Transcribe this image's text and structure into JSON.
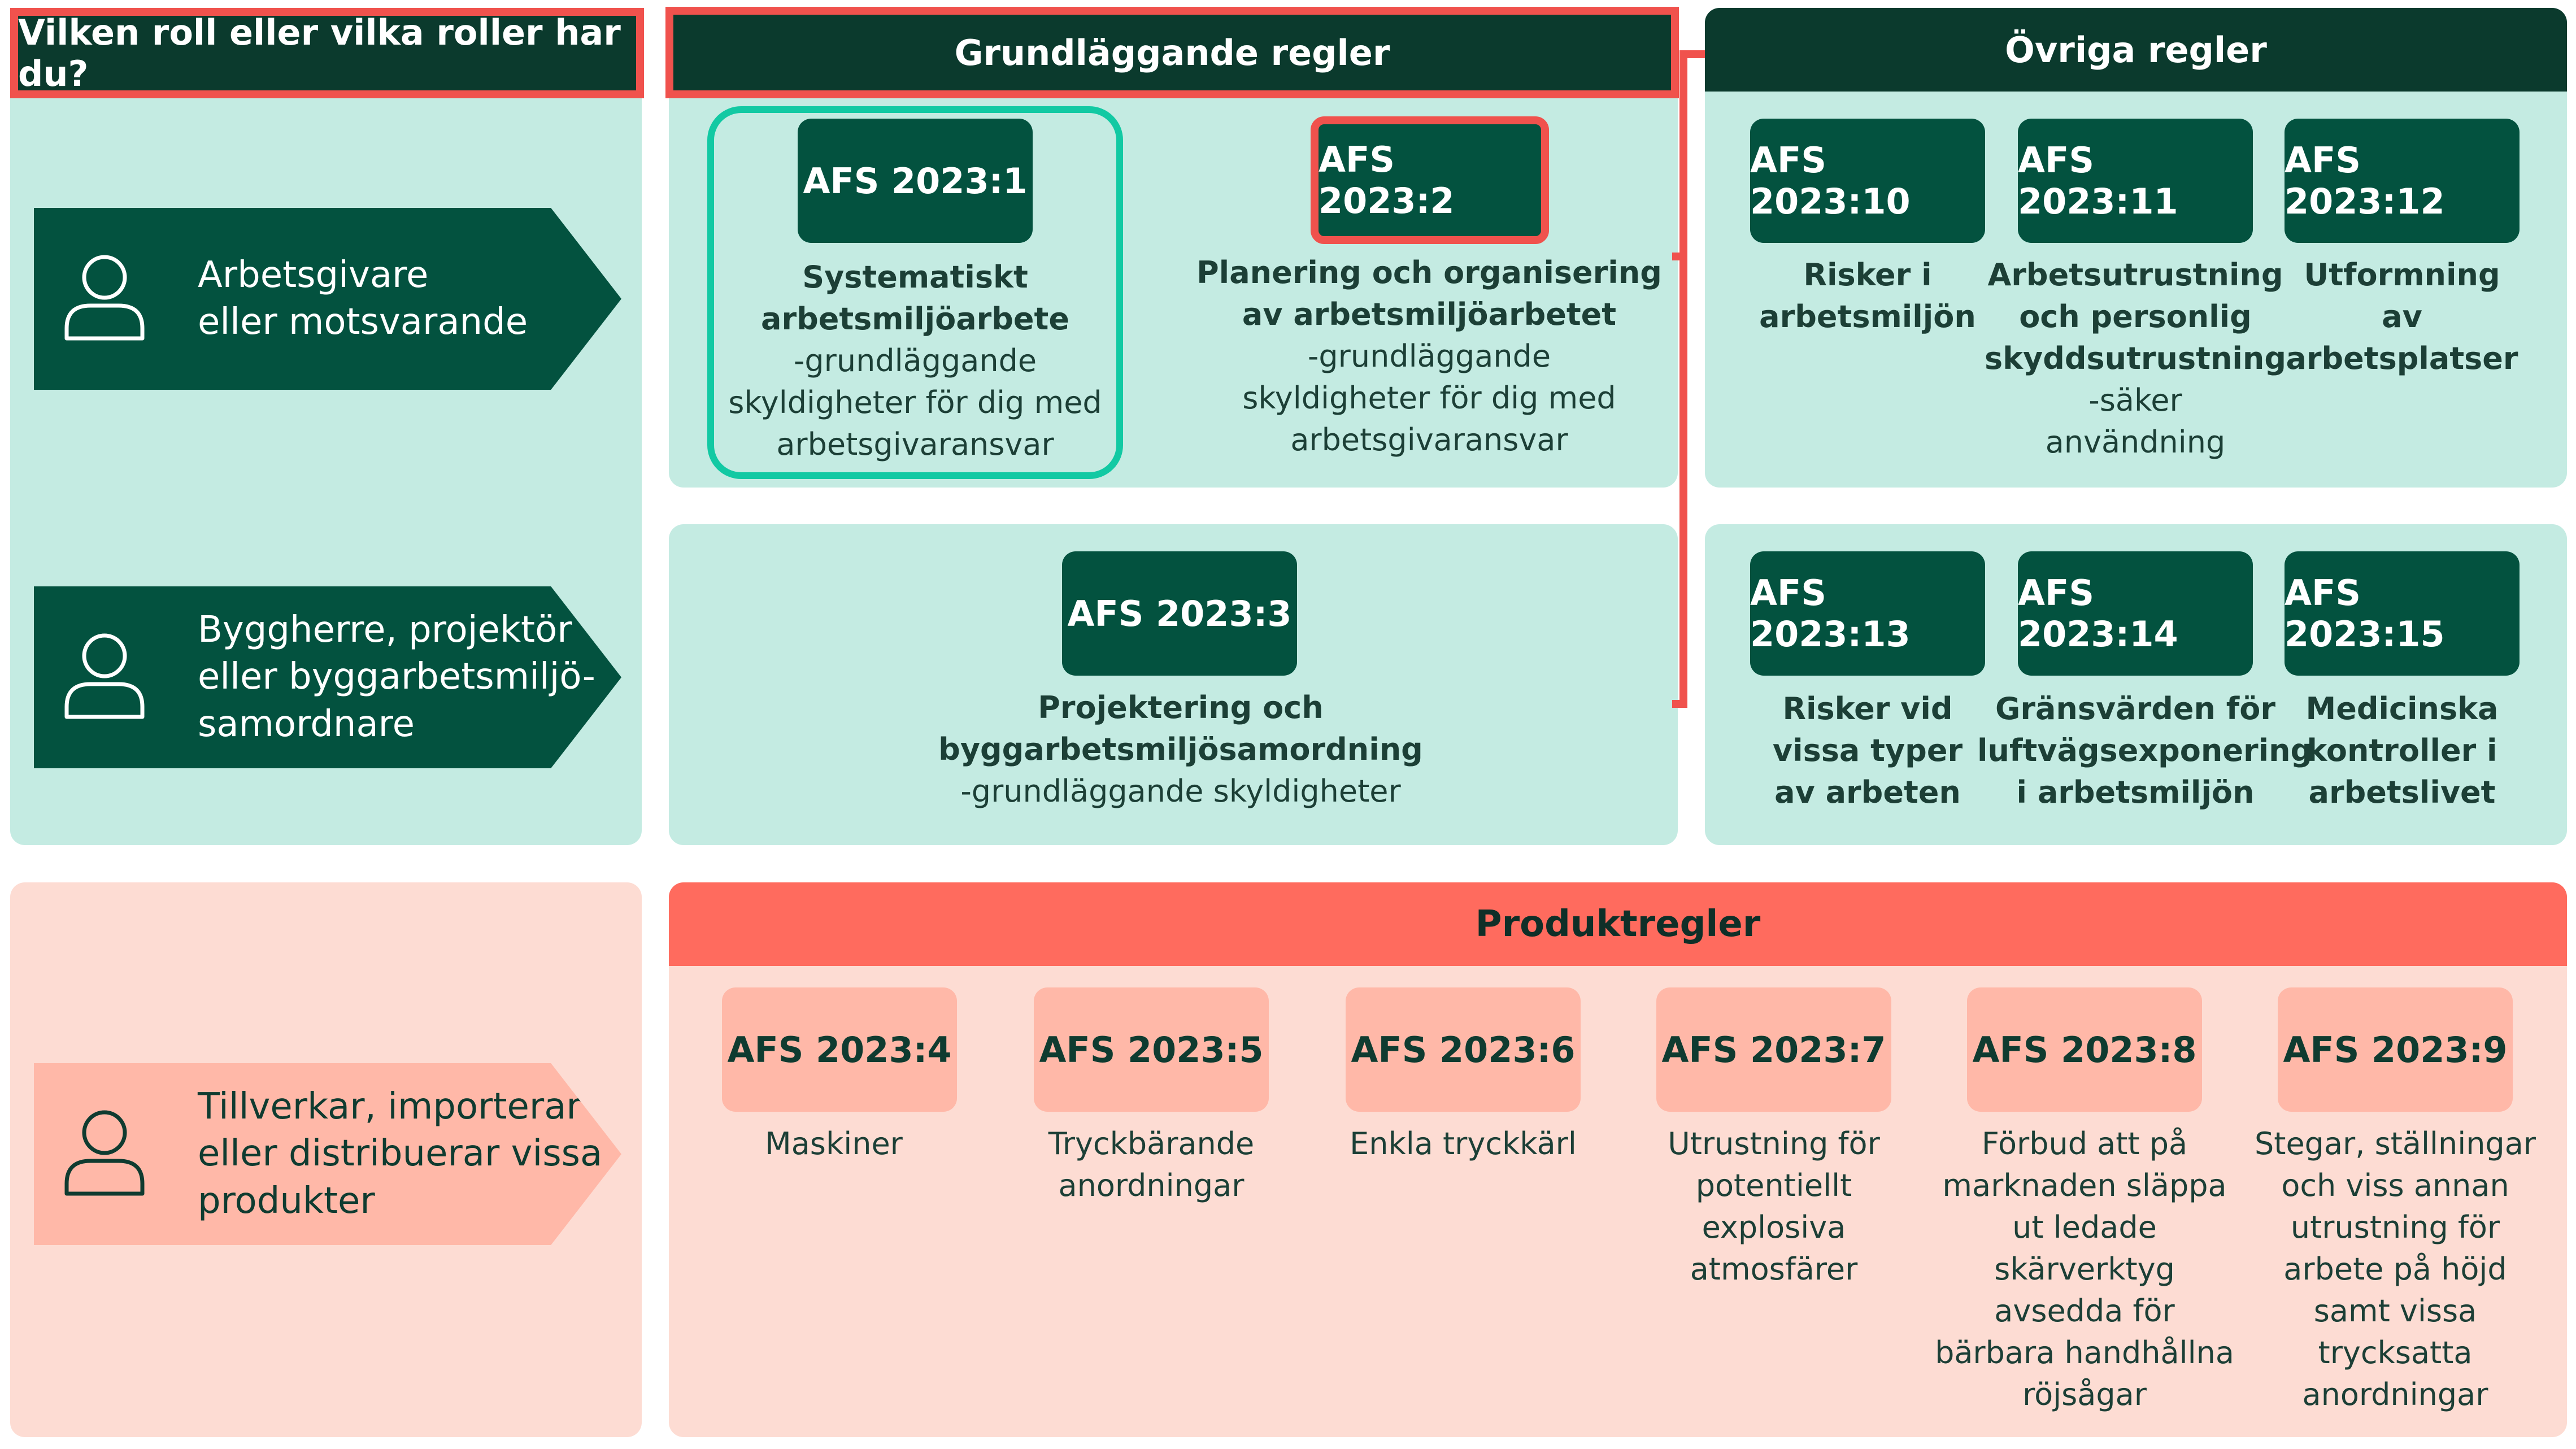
{
  "role_panel": {
    "question": "Vilken roll eller vilka roller har du?",
    "roles": [
      {
        "label": "Arbetsgivare\neller motsvarande",
        "icon": "person-icon"
      },
      {
        "label": "Byggherre, projektör\neller byggarbetsmiljö-\nsamordnare",
        "icon": "person-icon"
      },
      {
        "label": "Tillverkar, importerar\neller distribuerar vissa\nprodukter",
        "icon": "person-icon"
      }
    ]
  },
  "basic_rules": {
    "title": "Grundläggande regler",
    "items": [
      {
        "code": "AFS 2023:1",
        "bold": [
          "Systematiskt",
          "arbetsmiljöarbete"
        ],
        "normal": [
          "-grundläggande",
          "skyldigheter för dig med",
          "arbetsgivaransvar"
        ]
      },
      {
        "code": "AFS 2023:2",
        "bold": [
          "Planering och organisering",
          "av arbetsmiljöarbetet"
        ],
        "normal": [
          "-grundläggande",
          "skyldigheter för dig med",
          "arbetsgivaransvar"
        ]
      },
      {
        "code": "AFS 2023:3",
        "bold": [
          "Projektering och",
          "byggarbetsmiljösamordning"
        ],
        "normal": [
          "-grundläggande skyldigheter"
        ]
      }
    ]
  },
  "other_rules": {
    "title": "Övriga regler",
    "items": [
      {
        "code": "AFS 2023:10",
        "bold": [
          "Risker i",
          "arbetsmiljön"
        ],
        "normal": []
      },
      {
        "code": "AFS 2023:11",
        "bold": [
          "Arbetsutrustning",
          "och personlig",
          "skyddsutrustning"
        ],
        "normal": [
          "-säker",
          "användning"
        ]
      },
      {
        "code": "AFS 2023:12",
        "bold": [
          "Utformning",
          "av",
          "arbetsplatser"
        ],
        "normal": []
      },
      {
        "code": "AFS 2023:13",
        "bold": [
          "Risker vid",
          "vissa typer",
          "av arbeten"
        ],
        "normal": []
      },
      {
        "code": "AFS 2023:14",
        "bold": [
          "Gränsvärden för",
          "luftvägsexponering",
          "i arbetsmiljön"
        ],
        "normal": []
      },
      {
        "code": "AFS 2023:15",
        "bold": [
          "Medicinska",
          "kontroller i",
          "arbetslivet"
        ],
        "normal": []
      }
    ]
  },
  "product_rules": {
    "title": "Produktregler",
    "items": [
      {
        "code": "AFS 2023:4",
        "lines": [
          "Maskiner"
        ]
      },
      {
        "code": "AFS 2023:5",
        "lines": [
          "Tryckbärande",
          "anordningar"
        ]
      },
      {
        "code": "AFS 2023:6",
        "lines": [
          "Enkla tryckkärl"
        ]
      },
      {
        "code": "AFS 2023:7",
        "lines": [
          "Utrustning för",
          "potentiellt",
          "explosiva",
          "atmosfärer"
        ]
      },
      {
        "code": "AFS 2023:8",
        "lines": [
          "Förbud att på",
          "marknaden släppa",
          "ut ledade",
          "skärverktyg",
          "avsedda för",
          "bärbara handhållna",
          "röjsågar"
        ]
      },
      {
        "code": "AFS 2023:9",
        "lines": [
          "Stegar, ställningar",
          "och viss annan",
          "utrustning för",
          "arbete på höjd",
          "samt vissa",
          "trycksatta",
          "anordningar"
        ]
      }
    ]
  },
  "colors": {
    "dark_green": "#03523f",
    "header_green": "#0b3a2d",
    "light_green": "#c4ebe2",
    "coral": "#ff6b5e",
    "light_pink": "#fddcd3",
    "pink_box": "#ffb8a8",
    "highlight_red": "#f0524d",
    "highlight_teal": "#12c9a3"
  }
}
